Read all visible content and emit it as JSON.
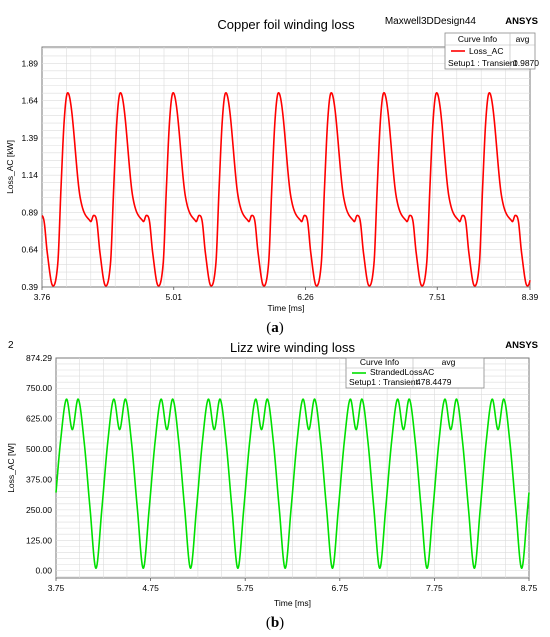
{
  "chart_data": [
    {
      "type": "line",
      "id": "a",
      "title": "Copper foil winding loss",
      "design_label": "Maxwell3DDesign44",
      "brand": "ANSYS",
      "xlabel": "Time [ms]",
      "ylabel": "Loss_AC [kW]",
      "xlim": [
        3.76,
        8.39
      ],
      "ylim": [
        0.39,
        2.0
      ],
      "xticks": [
        "3.76",
        "5.01",
        "6.26",
        "7.51",
        "8.39"
      ],
      "xtick_values": [
        3.76,
        5.01,
        6.26,
        7.51,
        8.39
      ],
      "yticks": [
        "0.39",
        "0.64",
        "0.89",
        "1.14",
        "1.39",
        "1.64",
        "1.89"
      ],
      "ytick_values": [
        0.39,
        0.64,
        0.89,
        1.14,
        1.39,
        1.64,
        1.89
      ],
      "grid": true,
      "legend": {
        "placement": "top-right",
        "header_name": "Curve Info",
        "header_value": "avg",
        "entry_name": "Loss_AC",
        "entry_context": "Setup1 : Transient",
        "entry_value": "0.9870"
      },
      "series": [
        {
          "name": "Loss_AC",
          "color": "#ff0000",
          "period": 0.5,
          "waveform": {
            "t": [
              0,
              0.04,
              0.12,
              0.22,
              0.25,
              0.28,
              0.31,
              0.36,
              0.41,
              0.44,
              0.47,
              0.5
            ],
            "v": [
              1.69,
              1.58,
              1.0,
              0.83,
              0.87,
              0.83,
              0.62,
              0.4,
              0.55,
              1.05,
              1.5,
              1.69
            ]
          },
          "first_peak": 4.0,
          "x_start": 3.76,
          "x_end": 8.39
        }
      ],
      "caption": "a"
    },
    {
      "type": "line",
      "id": "b",
      "corner_label": "2",
      "title": "Lizz wire winding loss",
      "brand": "ANSYS",
      "xlabel": "Time [ms]",
      "ylabel": "Loss_AC [W]",
      "xlim": [
        3.75,
        8.75
      ],
      "ylim": [
        -30,
        874.29
      ],
      "xticks": [
        "3.75",
        "4.75",
        "5.75",
        "6.75",
        "7.75",
        "8.75"
      ],
      "xtick_values": [
        3.75,
        4.75,
        5.75,
        6.75,
        7.75,
        8.75
      ],
      "yticks": [
        "0.00",
        "125.00",
        "250.00",
        "375.00",
        "500.00",
        "625.00",
        "750.00",
        "874.29"
      ],
      "ytick_values": [
        0,
        125,
        250,
        375,
        500,
        625,
        750,
        874.29
      ],
      "grid": true,
      "legend": {
        "placement": "top-center",
        "header_name": "Curve Info",
        "header_value": "avg",
        "entry_name": "StrandedLossAC",
        "entry_context": "Setup1 : Transient",
        "entry_value": "478.4479"
      },
      "series": [
        {
          "name": "StrandedLossAC",
          "color": "#00e000",
          "period": 0.5,
          "waveform": {
            "t": [
              0,
              0.0625,
              0.125,
              0.1875,
              0.25,
              0.3125,
              0.375,
              0.4375,
              0.5
            ],
            "v": [
              705,
              580,
              705,
              530,
              255,
              10,
              255,
              530,
              705
            ]
          },
          "first_peak": 3.86,
          "x_start": 3.75,
          "x_end": 8.75
        }
      ],
      "caption": "b"
    }
  ]
}
